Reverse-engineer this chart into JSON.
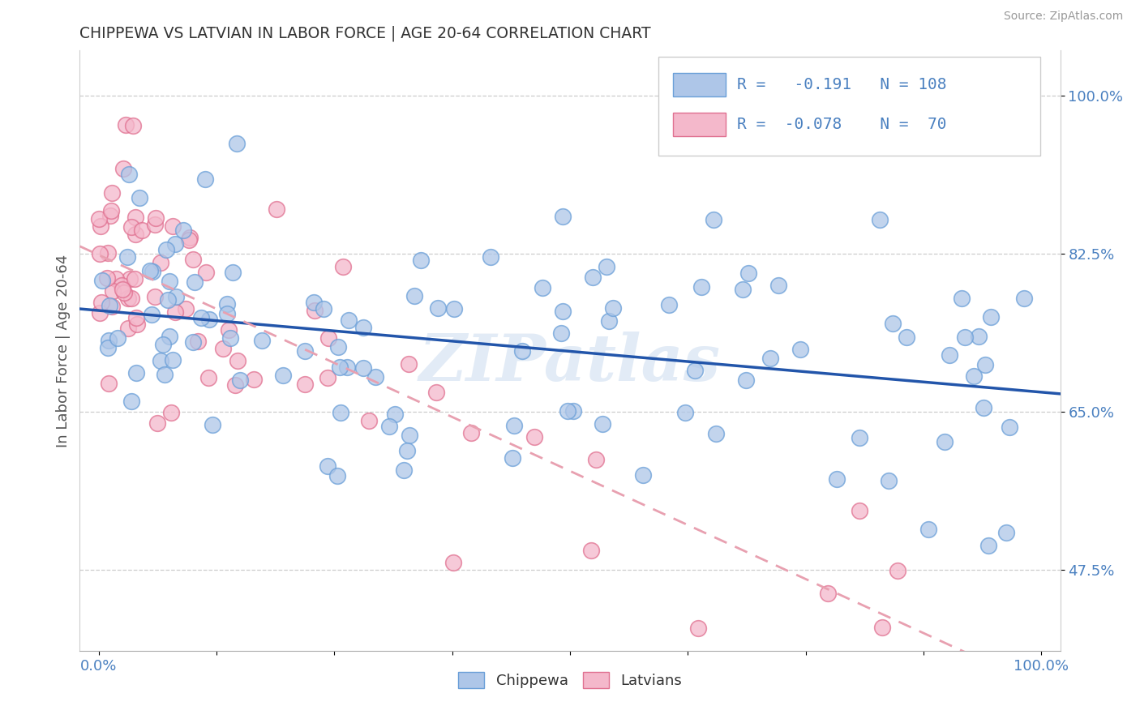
{
  "title": "CHIPPEWA VS LATVIAN IN LABOR FORCE | AGE 20-64 CORRELATION CHART",
  "source_text": "Source: ZipAtlas.com",
  "ylabel": "In Labor Force | Age 20-64",
  "xlim": [
    -0.02,
    1.02
  ],
  "ylim": [
    0.385,
    1.05
  ],
  "yticks": [
    0.475,
    0.65,
    0.825,
    1.0
  ],
  "ytick_labels": [
    "47.5%",
    "65.0%",
    "82.5%",
    "100.0%"
  ],
  "xticks": [
    0.0,
    0.125,
    0.25,
    0.375,
    0.5,
    0.625,
    0.75,
    0.875,
    1.0
  ],
  "xtick_labels": [
    "0.0%",
    "",
    "",
    "",
    "",
    "",
    "",
    "",
    "100.0%"
  ],
  "chippewa_R": -0.191,
  "chippewa_N": 108,
  "latvian_R": -0.078,
  "latvian_N": 70,
  "chippewa_scatter_color": "#aec6e8",
  "chippewa_edge_color": "#6a9fd8",
  "latvian_scatter_color": "#f4b8cb",
  "latvian_edge_color": "#e07090",
  "chippewa_line_color": "#2255aa",
  "latvian_line_color": "#e8a0b0",
  "title_color": "#333333",
  "axis_label_color": "#4a80c0",
  "watermark_text": "ZIPatlas",
  "legend_label_chippewa": "Chippewa",
  "legend_label_latvian": "Latvians"
}
